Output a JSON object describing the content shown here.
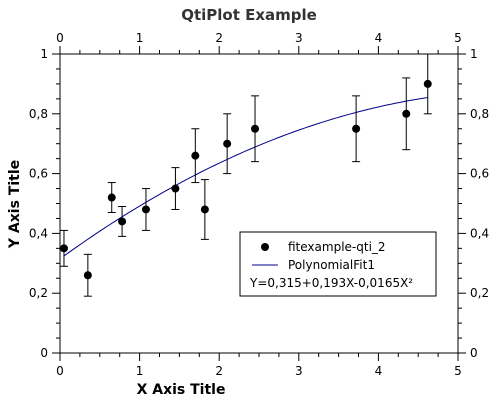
{
  "chart_data": {
    "type": "scatter",
    "title": "QtiPlot Example",
    "xlabel": "X Axis Title",
    "ylabel": "Y Axis Title",
    "xlim": [
      0,
      5
    ],
    "ylim": [
      0,
      1
    ],
    "x_ticks": [
      "0",
      "1",
      "2",
      "3",
      "4",
      "5"
    ],
    "y_ticks": [
      "0",
      "0,2",
      "0,4",
      "0,6",
      "0,8",
      "1"
    ],
    "grid": false,
    "legend_position": "lower-right",
    "series": [
      {
        "name": "fitexample-qti_2",
        "kind": "scatter-errorbars",
        "color": "#000000",
        "points": [
          {
            "x": 0.05,
            "y": 0.35,
            "err": 0.06
          },
          {
            "x": 0.35,
            "y": 0.26,
            "err": 0.07
          },
          {
            "x": 0.65,
            "y": 0.52,
            "err": 0.05
          },
          {
            "x": 0.78,
            "y": 0.44,
            "err": 0.05
          },
          {
            "x": 1.08,
            "y": 0.48,
            "err": 0.07
          },
          {
            "x": 1.45,
            "y": 0.55,
            "err": 0.07
          },
          {
            "x": 1.7,
            "y": 0.66,
            "err": 0.09
          },
          {
            "x": 1.82,
            "y": 0.48,
            "err": 0.1
          },
          {
            "x": 2.1,
            "y": 0.7,
            "err": 0.1
          },
          {
            "x": 2.45,
            "y": 0.75,
            "err": 0.11
          },
          {
            "x": 3.72,
            "y": 0.75,
            "err": 0.11
          },
          {
            "x": 4.35,
            "y": 0.8,
            "err": 0.12
          },
          {
            "x": 4.62,
            "y": 0.9,
            "err": 0.1
          }
        ]
      },
      {
        "name": "PolynomialFit1",
        "kind": "line",
        "color": "#00008b",
        "x_range": [
          0.05,
          4.62
        ],
        "coefficients": [
          0.315,
          0.193,
          -0.0165
        ]
      }
    ],
    "annotations": [
      "Y=0,315+0,193X-0,0165X²"
    ]
  }
}
